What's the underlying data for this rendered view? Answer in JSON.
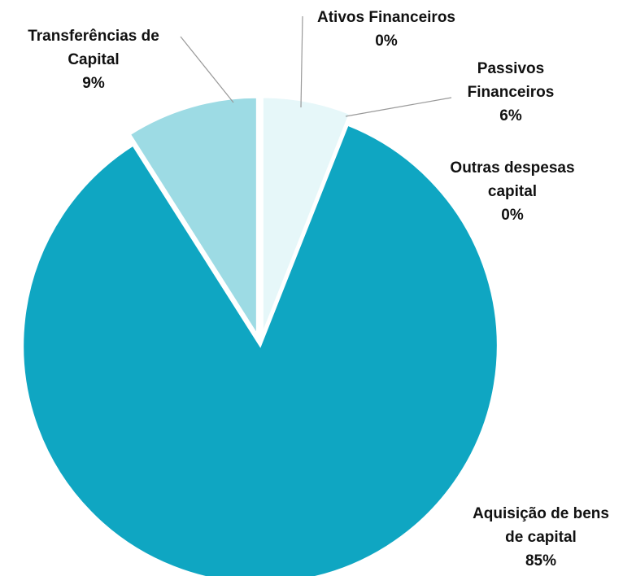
{
  "chart_data": {
    "type": "pie",
    "categories": [
      "Ativos Financeiros",
      "Passivos\nFinanceiros",
      "Outras despesas\ncapital",
      "Aquisição de bens\nde capital",
      "Transferências de\nCapital"
    ],
    "values": [
      0,
      6,
      0,
      85,
      9
    ],
    "value_labels": [
      "0%",
      "6%",
      "0%",
      "85%",
      "9%"
    ],
    "colors": [
      "#5cc3d4",
      "#e6f7f9",
      "#5cc3d4",
      "#0fa6c2",
      "#9ddbe4"
    ]
  }
}
